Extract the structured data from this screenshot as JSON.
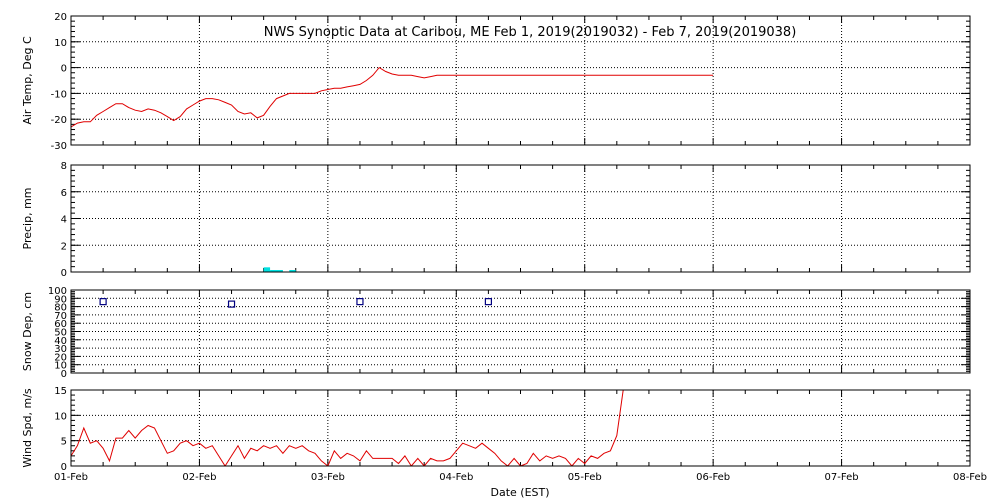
{
  "chart_data": {
    "title": "NWS Synoptic Data at Caribou, ME   Feb  1, 2019(2019032) - Feb  7, 2019(2019038)",
    "xlabel": "Date (EST)",
    "x_ticks": [
      "01-Feb",
      "02-Feb",
      "03-Feb",
      "04-Feb",
      "05-Feb",
      "06-Feb",
      "07-Feb",
      "08-Feb"
    ],
    "x_range_days": [
      0,
      7
    ],
    "grid": true,
    "panels": [
      {
        "type": "line",
        "ylabel": "Air Temp, Deg C",
        "ylim": [
          -30,
          20
        ],
        "y_ticks": [
          -30,
          -20,
          -10,
          0,
          10,
          20
        ],
        "color": "#e00000",
        "x": [
          0.0,
          0.05,
          0.1,
          0.15,
          0.2,
          0.25,
          0.3,
          0.35,
          0.4,
          0.45,
          0.5,
          0.55,
          0.6,
          0.65,
          0.7,
          0.75,
          0.8,
          0.85,
          0.9,
          0.95,
          1.0,
          1.05,
          1.1,
          1.15,
          1.2,
          1.25,
          1.3,
          1.35,
          1.4,
          1.45,
          1.5,
          1.55,
          1.6,
          1.65,
          1.7,
          1.75,
          1.8,
          1.85,
          1.9,
          1.95,
          2.0,
          2.05,
          2.1,
          2.15,
          2.2,
          2.25,
          2.3,
          2.35,
          2.4,
          2.45,
          2.5,
          2.55,
          2.6,
          2.65,
          2.7,
          2.75,
          2.8,
          2.85,
          2.9,
          2.95,
          3.0,
          3.05,
          3.1,
          3.15,
          3.2,
          3.25,
          3.3,
          3.35,
          3.4,
          3.45,
          3.5,
          3.55,
          3.6,
          3.65,
          3.7,
          3.75,
          3.8,
          3.85,
          3.9,
          3.95,
          4.0,
          4.05,
          4.1,
          4.15,
          4.2,
          4.25,
          4.3,
          4.35,
          4.4,
          4.45,
          4.5,
          4.55,
          4.6,
          4.65,
          4.7,
          4.75,
          4.8,
          4.85,
          4.9,
          4.95,
          5.0
        ],
        "values": [
          -23,
          -21.5,
          -21,
          -21,
          -18.5,
          -17,
          -15.5,
          -14,
          -14,
          -15.5,
          -16.5,
          -17,
          -16,
          -16.5,
          -17.5,
          -19,
          -20.5,
          -19,
          -16,
          -14.5,
          -13,
          -12,
          -12,
          -12.5,
          -13.5,
          -14.5,
          -17,
          -18,
          -17.5,
          -19.5,
          -18.5,
          -15,
          -12,
          -11,
          -10,
          -10,
          -10,
          -10,
          -10,
          -9,
          -8.5,
          -8,
          -8,
          -7.5,
          -7,
          -6.5,
          -5,
          -3,
          0,
          -1.5,
          -2.5,
          -3,
          -3,
          -3,
          -3.5,
          -4,
          -3.5,
          -3,
          -3,
          -3,
          -3,
          -3,
          -3,
          -3,
          -3,
          -3,
          -3,
          -3,
          -3,
          -3,
          -3,
          -3,
          -3,
          -3,
          -3,
          -3,
          -3,
          -3,
          -3,
          -3,
          -3,
          -3,
          -3,
          -3,
          -3,
          -3,
          -3,
          -3,
          -3,
          -3,
          -3,
          -3,
          -3,
          -3,
          -3,
          -3,
          -3,
          -3,
          -3,
          -3,
          -3
        ]
      },
      {
        "type": "bar",
        "ylabel": "Precip, mm",
        "ylim": [
          0,
          8
        ],
        "y_ticks": [
          0,
          2,
          4,
          6,
          8
        ],
        "color": "#00e0e0",
        "x": [
          1.5,
          1.55,
          1.6,
          1.7
        ],
        "values": [
          0.35,
          0.15,
          0.15,
          0.15
        ]
      },
      {
        "type": "scatter",
        "ylabel": "Snow Dep, cm",
        "ylim": [
          0,
          100
        ],
        "y_ticks": [
          0,
          10,
          20,
          30,
          40,
          50,
          60,
          70,
          80,
          90,
          100
        ],
        "color": "#000080",
        "x": [
          0.25,
          1.25,
          2.25,
          3.25
        ],
        "values": [
          86,
          83,
          86,
          86
        ]
      },
      {
        "type": "line",
        "ylabel": "Wind Spd, m/s",
        "ylim": [
          0,
          15
        ],
        "y_ticks": [
          0,
          5,
          10,
          15
        ],
        "color": "#e00000",
        "x": [
          0.0,
          0.05,
          0.1,
          0.15,
          0.2,
          0.25,
          0.3,
          0.35,
          0.4,
          0.45,
          0.5,
          0.55,
          0.6,
          0.65,
          0.7,
          0.75,
          0.8,
          0.85,
          0.9,
          0.95,
          1.0,
          1.05,
          1.1,
          1.15,
          1.2,
          1.25,
          1.3,
          1.35,
          1.4,
          1.45,
          1.5,
          1.55,
          1.6,
          1.65,
          1.7,
          1.75,
          1.8,
          1.85,
          1.9,
          1.95,
          2.0,
          2.05,
          2.1,
          2.15,
          2.2,
          2.25,
          2.3,
          2.35,
          2.4,
          2.45,
          2.5,
          2.55,
          2.6,
          2.65,
          2.7,
          2.75,
          2.8,
          2.85,
          2.9,
          2.95,
          3.0,
          3.05,
          3.1,
          3.15,
          3.2,
          3.25,
          3.3,
          3.35,
          3.4,
          3.45,
          3.5,
          3.55,
          3.6,
          3.65,
          3.7,
          3.75,
          3.8,
          3.85,
          3.9,
          3.95,
          4.0,
          4.05,
          4.1,
          4.15,
          4.2,
          4.25,
          4.3
        ],
        "values": [
          2,
          4,
          7.5,
          4.5,
          5,
          3.5,
          1,
          5.5,
          5.5,
          7,
          5.5,
          7,
          8,
          7.5,
          5,
          2.5,
          3,
          4.5,
          5,
          4,
          4.5,
          3.5,
          4,
          2,
          0,
          2,
          4,
          1.5,
          3.5,
          3,
          4,
          3.5,
          4,
          2.5,
          4,
          3.5,
          4,
          3,
          2.5,
          1,
          0,
          3,
          1.5,
          2.5,
          2,
          1,
          3,
          1.5,
          1.5,
          1.5,
          1.5,
          0.5,
          2,
          0,
          1.5,
          0,
          1.5,
          1,
          1,
          1.5,
          3,
          4.5,
          4,
          3.5,
          4.5,
          3.5,
          2.5,
          1,
          0,
          1.5,
          0,
          0.5,
          2.5,
          1,
          2,
          1.5,
          2,
          1.5,
          0,
          1.5,
          0.5,
          2,
          1.5,
          2.5,
          3,
          6,
          15
        ]
      }
    ]
  }
}
